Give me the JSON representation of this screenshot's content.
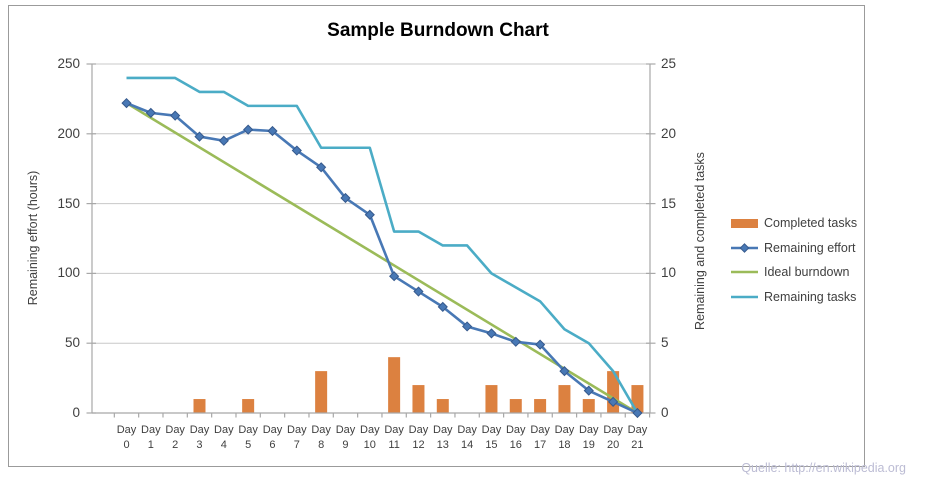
{
  "title": "Sample Burndown Chart",
  "source_note": "Quelle: http://en.wikipedia.org",
  "colors": {
    "completed_tasks": "#DC8140",
    "remaining_effort": "#4878B5",
    "remaining_effort_marker_edge": "#36598C",
    "ideal_burndown": "#9BBB59",
    "remaining_tasks": "#4BACC6",
    "gridline": "#C8C8C8",
    "axis": "#A8A8A8",
    "text": "#3F3F3F",
    "source_text": "#BCBCD4",
    "frame_border": "#9B9B9B"
  },
  "chart_data": {
    "type": "combo",
    "title": "Sample Burndown Chart",
    "categories": [
      "Day 0",
      "Day 1",
      "Day 2",
      "Day 3",
      "Day 4",
      "Day 5",
      "Day 6",
      "Day 7",
      "Day 8",
      "Day 9",
      "Day 10",
      "Day 11",
      "Day 12",
      "Day 13",
      "Day 14",
      "Day 15",
      "Day 16",
      "Day 17",
      "Day 18",
      "Day 19",
      "Day 20",
      "Day 21"
    ],
    "left_axis": {
      "title": "Remaining effort (hours)",
      "min": 0,
      "max": 250,
      "step": 50,
      "ticks": [
        250,
        200,
        150,
        100,
        50,
        0
      ]
    },
    "right_axis": {
      "title": "Remaining and completed tasks",
      "min": 0,
      "max": 25,
      "step": 5,
      "ticks": [
        25,
        20,
        15,
        10,
        5,
        0
      ]
    },
    "grid": "horizontal",
    "legend_position": "right",
    "series": [
      {
        "name": "Completed tasks",
        "type": "bar",
        "axis": "right",
        "color": "#DC8140",
        "values": [
          null,
          null,
          null,
          1,
          null,
          1,
          null,
          null,
          3,
          null,
          null,
          4,
          2,
          1,
          null,
          2,
          1,
          1,
          2,
          1,
          3,
          2
        ]
      },
      {
        "name": "Remaining effort",
        "type": "line",
        "marker": "diamond",
        "axis": "left",
        "color": "#4878B5",
        "values": [
          222,
          215,
          213,
          198,
          195,
          203,
          202,
          188,
          176,
          154,
          142,
          98,
          87,
          76,
          62,
          57,
          51,
          49,
          30,
          16,
          8,
          0
        ]
      },
      {
        "name": "Ideal burndown",
        "type": "line",
        "marker": "none",
        "axis": "left",
        "color": "#9BBB59",
        "values": [
          222,
          null,
          null,
          null,
          null,
          null,
          null,
          null,
          null,
          null,
          null,
          null,
          null,
          null,
          null,
          null,
          null,
          null,
          null,
          null,
          null,
          0
        ]
      },
      {
        "name": "Remaining tasks",
        "type": "line",
        "marker": "none",
        "axis": "right",
        "color": "#4BACC6",
        "values": [
          24,
          24,
          24,
          23,
          23,
          22,
          22,
          22,
          19,
          19,
          19,
          13,
          13,
          12,
          12,
          10,
          9,
          8,
          6,
          5,
          3,
          0
        ]
      }
    ]
  }
}
